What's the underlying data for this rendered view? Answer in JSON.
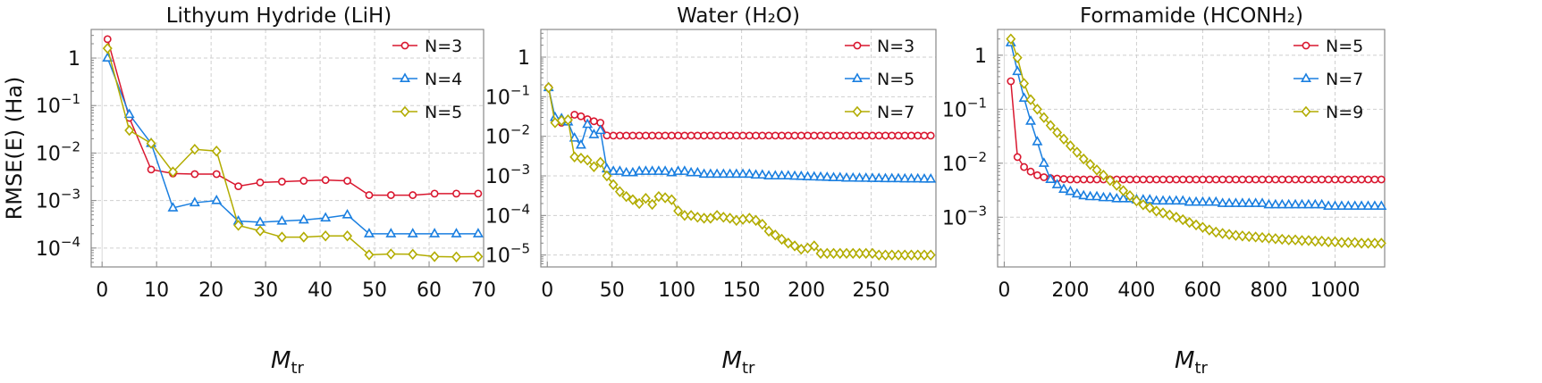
{
  "figure": {
    "ylabel": "RMSE(E) (Ha)"
  },
  "colors": {
    "red": "#d9172f",
    "blue": "#1a7fe0",
    "olive": "#b2ac00",
    "grid": "#cfcfcf",
    "frame": "#888888"
  },
  "chart_data": [
    {
      "type": "line",
      "title": "Lithyum Hydride (LiH)",
      "xlabel": "M",
      "xlabel_sub": "tr",
      "ylabel": "RMSE(E) (Ha)",
      "yscale": "log",
      "xlim": [
        -2,
        70
      ],
      "ylim": [
        4e-05,
        4
      ],
      "xticks": [
        0,
        10,
        20,
        30,
        40,
        50,
        60,
        70
      ],
      "xtick_labels": [
        "0",
        "10",
        "20",
        "30",
        "40",
        "50",
        "60",
        "70"
      ],
      "yticks": [
        1,
        0.1,
        0.01,
        0.001,
        0.0001
      ],
      "ytick_base": [
        "1",
        "10",
        "10",
        "10",
        "10"
      ],
      "ytick_exp": [
        "",
        "−1",
        "−2",
        "−3",
        "−4"
      ],
      "legend": "top-right",
      "series": [
        {
          "name": "N=3",
          "color": "#d9172f",
          "marker": "circle",
          "x": [
            1,
            5,
            9,
            13,
            17,
            21,
            25,
            29,
            33,
            37,
            41,
            45,
            49,
            53,
            57,
            61,
            65,
            69
          ],
          "y": [
            2.5,
            0.055,
            0.0045,
            0.0037,
            0.0036,
            0.0036,
            0.002,
            0.0024,
            0.0025,
            0.0026,
            0.0027,
            0.0026,
            0.0013,
            0.0013,
            0.0013,
            0.0014,
            0.0014,
            0.0014
          ]
        },
        {
          "name": "N=4",
          "color": "#1a7fe0",
          "marker": "triangle",
          "x": [
            1,
            5,
            9,
            13,
            17,
            21,
            25,
            29,
            33,
            37,
            41,
            45,
            49,
            53,
            57,
            61,
            65,
            69
          ],
          "y": [
            1.0,
            0.065,
            0.016,
            0.0007,
            0.0009,
            0.001,
            0.00037,
            0.00035,
            0.00037,
            0.00039,
            0.00043,
            0.0005,
            0.0002,
            0.0002,
            0.0002,
            0.0002,
            0.0002,
            0.0002
          ]
        },
        {
          "name": "N=5",
          "color": "#b2ac00",
          "marker": "diamond",
          "x": [
            1,
            5,
            9,
            13,
            17,
            21,
            25,
            29,
            33,
            37,
            41,
            45,
            49,
            53,
            57,
            61,
            65,
            69
          ],
          "y": [
            1.6,
            0.03,
            0.016,
            0.004,
            0.012,
            0.011,
            0.0003,
            0.00023,
            0.00017,
            0.00017,
            0.00018,
            0.00018,
            7.2e-05,
            7.5e-05,
            7.4e-05,
            6.6e-05,
            6.5e-05,
            6.6e-05
          ]
        }
      ]
    },
    {
      "type": "line",
      "title": "Water (H₂O)",
      "xlabel": "M",
      "xlabel_sub": "tr",
      "ylabel": "",
      "yscale": "log",
      "xlim": [
        -5,
        300
      ],
      "ylim": [
        5e-06,
        5
      ],
      "xticks": [
        0,
        50,
        100,
        150,
        200,
        250
      ],
      "xtick_labels": [
        "0",
        "50",
        "100",
        "150",
        "200",
        "250"
      ],
      "yticks": [
        1,
        0.1,
        0.01,
        0.001,
        0.0001,
        1e-05
      ],
      "ytick_base": [
        "1",
        "10",
        "10",
        "10",
        "10",
        "10"
      ],
      "ytick_exp": [
        "",
        "−1",
        "−2",
        "−3",
        "−4",
        "−5"
      ],
      "legend": "top-right",
      "series": [
        {
          "name": "N=3",
          "color": "#d9172f",
          "marker": "circle",
          "generator": "sequence",
          "start": 1,
          "step": 5,
          "count": 60,
          "y": [
            0.17,
            0.025,
            0.022,
            0.025,
            0.035,
            0.032,
            0.027,
            0.024,
            0.022,
            0.0105,
            0.0104,
            0.0104,
            0.0104,
            0.0104,
            0.0104,
            0.0104,
            0.0104,
            0.0104,
            0.0104,
            0.0104,
            0.0104,
            0.0104,
            0.0104,
            0.0104,
            0.0104,
            0.0104,
            0.0104,
            0.0104,
            0.0104,
            0.0104,
            0.0104,
            0.0104,
            0.0104,
            0.0104,
            0.0104,
            0.0104,
            0.0104,
            0.0104,
            0.0104,
            0.0104,
            0.0104,
            0.0104,
            0.0104,
            0.0104,
            0.0104,
            0.0104,
            0.0104,
            0.0104,
            0.0104,
            0.0104,
            0.0104,
            0.0104,
            0.0104,
            0.0104,
            0.0104,
            0.0104,
            0.0104,
            0.0104,
            0.0104,
            0.0104
          ]
        },
        {
          "name": "N=5",
          "color": "#1a7fe0",
          "marker": "triangle",
          "generator": "sequence",
          "start": 1,
          "step": 5,
          "count": 60,
          "y": [
            0.17,
            0.03,
            0.028,
            0.023,
            0.009,
            0.006,
            0.02,
            0.011,
            0.014,
            0.0015,
            0.0013,
            0.0013,
            0.0012,
            0.0012,
            0.0013,
            0.0013,
            0.0013,
            0.0013,
            0.0013,
            0.0012,
            0.0013,
            0.0013,
            0.0012,
            0.0012,
            0.0011,
            0.0011,
            0.0011,
            0.0011,
            0.0011,
            0.0011,
            0.0011,
            0.0011,
            0.00105,
            0.00105,
            0.001,
            0.001,
            0.001,
            0.001,
            0.00098,
            0.00097,
            0.00095,
            0.00094,
            0.00093,
            0.00092,
            0.0009,
            0.0009,
            0.00088,
            0.00088,
            0.00087,
            0.00087,
            0.00086,
            0.00086,
            0.00085,
            0.00085,
            0.00085,
            0.00084,
            0.00084,
            0.00084,
            0.00083,
            0.00083
          ]
        },
        {
          "name": "N=7",
          "color": "#b2ac00",
          "marker": "diamond",
          "generator": "sequence",
          "start": 1,
          "step": 5,
          "count": 60,
          "y": [
            0.17,
            0.022,
            0.025,
            0.026,
            0.003,
            0.0028,
            0.0025,
            0.0017,
            0.0022,
            0.001,
            0.0006,
            0.0004,
            0.0003,
            0.00025,
            0.0002,
            0.00027,
            0.00019,
            0.0003,
            0.00028,
            0.00025,
            0.00013,
            0.0001,
            0.0001,
            9e-05,
            8.5e-05,
            8.5e-05,
            0.0001,
            9e-05,
            8.5e-05,
            7.5e-05,
            8e-05,
            8.5e-05,
            7.5e-05,
            6e-05,
            4e-05,
            3.2e-05,
            2.5e-05,
            2e-05,
            1.7e-05,
            1.4e-05,
            1.5e-05,
            1.7e-05,
            1.1e-05,
            1.1e-05,
            1.1e-05,
            1.1e-05,
            1.1e-05,
            1.1e-05,
            1.1e-05,
            1.1e-05,
            1.1e-05,
            1e-05,
            1e-05,
            1e-05,
            1e-05,
            1e-05,
            1e-05,
            1e-05,
            1e-05,
            1e-05
          ]
        }
      ]
    },
    {
      "type": "line",
      "title": "Formamide (HCONH₂)",
      "xlabel": "M",
      "xlabel_sub": "tr",
      "ylabel": "",
      "yscale": "log",
      "xlim": [
        -20,
        1150
      ],
      "ylim": [
        0.00012,
        3
      ],
      "xticks": [
        0,
        200,
        400,
        600,
        800,
        1000
      ],
      "xtick_labels": [
        "0",
        "200",
        "400",
        "600",
        "800",
        "1000"
      ],
      "yticks": [
        1,
        0.1,
        0.01,
        0.001
      ],
      "ytick_base": [
        "1",
        "10",
        "10",
        "10"
      ],
      "ytick_exp": [
        "",
        "−1",
        "−2",
        "−3"
      ],
      "legend": "top-right",
      "series": [
        {
          "name": "N=5",
          "color": "#d9172f",
          "marker": "circle",
          "generator": "sequence",
          "start": 20,
          "step": 20,
          "count": 57,
          "y": [
            0.33,
            0.013,
            0.0085,
            0.007,
            0.006,
            0.0055,
            0.0053,
            0.0052,
            0.0051,
            0.005,
            0.005,
            0.005,
            0.005,
            0.005,
            0.005,
            0.005,
            0.005,
            0.005,
            0.005,
            0.005,
            0.005,
            0.005,
            0.005,
            0.005,
            0.005,
            0.005,
            0.005,
            0.005,
            0.005,
            0.005,
            0.005,
            0.005,
            0.005,
            0.005,
            0.005,
            0.005,
            0.005,
            0.005,
            0.005,
            0.005,
            0.005,
            0.005,
            0.005,
            0.005,
            0.005,
            0.005,
            0.005,
            0.005,
            0.005,
            0.005,
            0.005,
            0.005,
            0.005,
            0.005,
            0.005,
            0.005,
            0.005
          ]
        },
        {
          "name": "N=7",
          "color": "#1a7fe0",
          "marker": "triangle",
          "generator": "sequence",
          "start": 20,
          "step": 20,
          "count": 57,
          "y": [
            1.7,
            0.5,
            0.16,
            0.06,
            0.025,
            0.01,
            0.005,
            0.004,
            0.0033,
            0.003,
            0.0027,
            0.0025,
            0.0024,
            0.0024,
            0.0023,
            0.0023,
            0.0022,
            0.0022,
            0.0022,
            0.0021,
            0.0021,
            0.0021,
            0.002,
            0.002,
            0.002,
            0.002,
            0.002,
            0.0019,
            0.0019,
            0.0019,
            0.0019,
            0.0019,
            0.0018,
            0.0018,
            0.0018,
            0.0018,
            0.0018,
            0.0018,
            0.0018,
            0.0017,
            0.0017,
            0.0017,
            0.0017,
            0.0017,
            0.0017,
            0.0017,
            0.0017,
            0.0017,
            0.0016,
            0.0016,
            0.0016,
            0.0016,
            0.0016,
            0.0016,
            0.0016,
            0.0016,
            0.0016
          ]
        },
        {
          "name": "N=9",
          "color": "#b2ac00",
          "marker": "diamond",
          "generator": "sequence",
          "start": 20,
          "step": 20,
          "count": 57,
          "y": [
            2.0,
            0.9,
            0.3,
            0.15,
            0.1,
            0.07,
            0.05,
            0.037,
            0.028,
            0.021,
            0.016,
            0.012,
            0.0095,
            0.0075,
            0.006,
            0.0048,
            0.0039,
            0.0031,
            0.0025,
            0.002,
            0.0017,
            0.0015,
            0.0013,
            0.0012,
            0.0011,
            0.001,
            0.0009,
            0.0008,
            0.00072,
            0.00065,
            0.00058,
            0.00053,
            0.0005,
            0.00048,
            0.00046,
            0.00045,
            0.00044,
            0.00043,
            0.00042,
            0.00041,
            0.0004,
            0.00039,
            0.00038,
            0.00038,
            0.00037,
            0.00037,
            0.00036,
            0.00036,
            0.00035,
            0.00035,
            0.00034,
            0.00034,
            0.00034,
            0.00033,
            0.00033,
            0.00033,
            0.00033
          ]
        }
      ]
    }
  ]
}
